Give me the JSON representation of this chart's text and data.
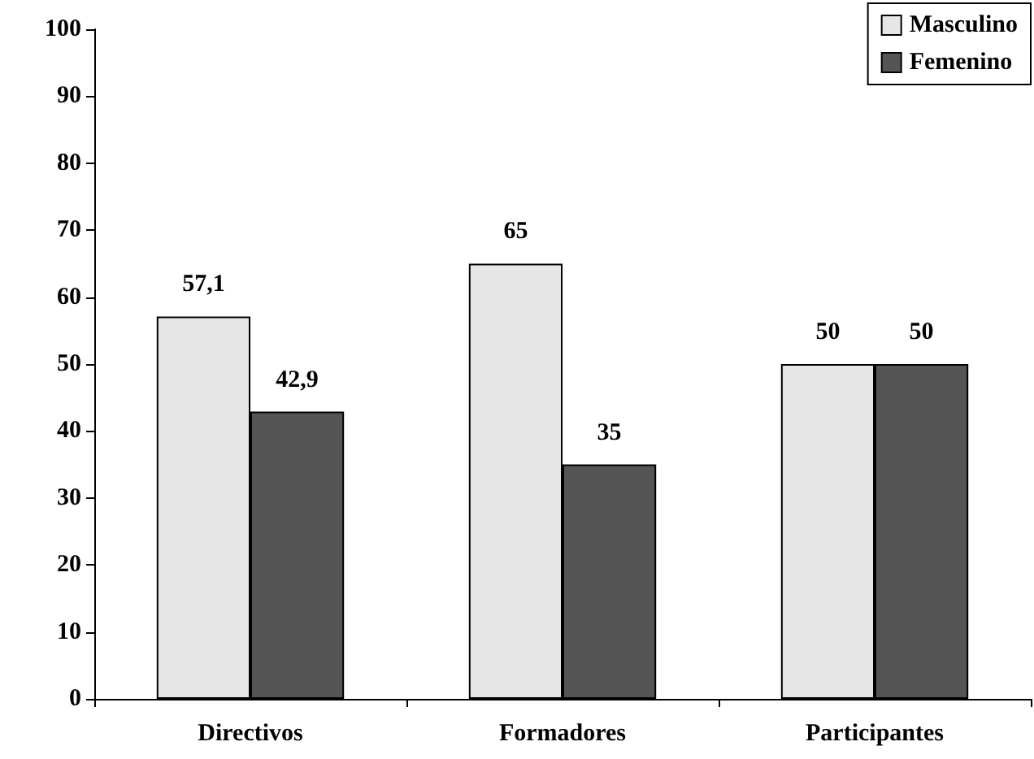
{
  "chart_data": {
    "type": "bar",
    "categories": [
      "Directivos",
      "Formadores",
      "Participantes"
    ],
    "series": [
      {
        "name": "Masculino",
        "color": "#e6e6e6",
        "values": [
          57.1,
          65,
          50
        ],
        "value_labels": [
          "57,1",
          "65",
          "50"
        ]
      },
      {
        "name": "Femenino",
        "color": "#555555",
        "values": [
          42.9,
          35,
          50
        ],
        "value_labels": [
          "42,9",
          "35",
          "50"
        ]
      }
    ],
    "ylim": [
      0,
      100
    ],
    "yticks": [
      0,
      10,
      20,
      30,
      40,
      50,
      60,
      70,
      80,
      90,
      100
    ],
    "grid": false,
    "legend": "top right"
  }
}
